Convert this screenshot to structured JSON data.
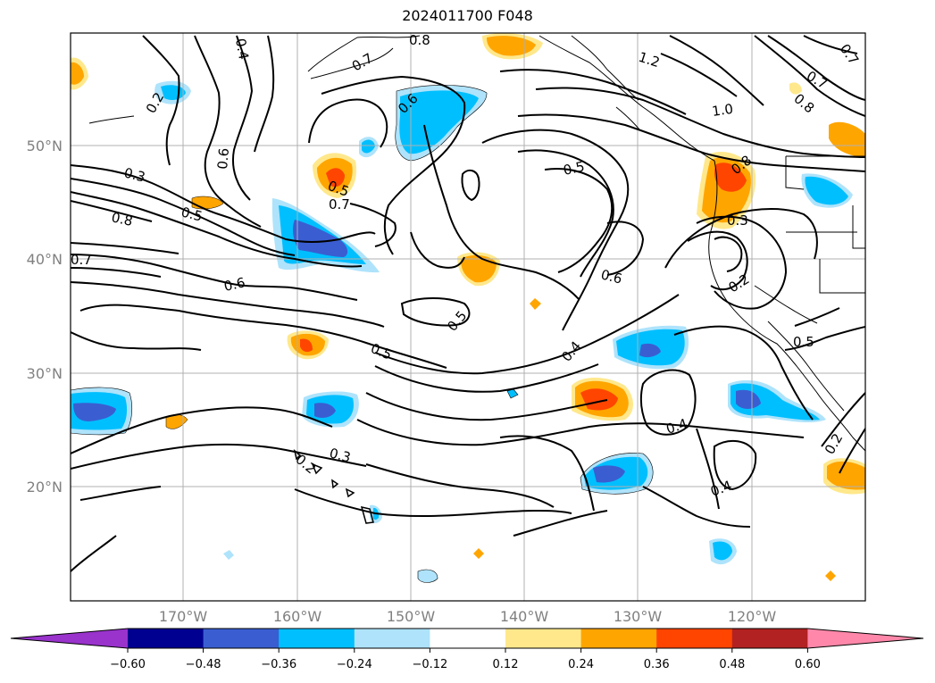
{
  "title": "2024011700 F048",
  "lon_labels": [
    "170°W",
    "160°W",
    "150°W",
    "140°W",
    "130°W",
    "120°W"
  ],
  "lat_labels": [
    "50°N",
    "40°N",
    "30°N",
    "20°N"
  ],
  "colorbar": {
    "ticks": [
      "−0.60",
      "−0.48",
      "−0.36",
      "−0.24",
      "−0.12",
      "0.12",
      "0.24",
      "0.36",
      "0.48",
      "0.60"
    ],
    "colors": [
      "#9933cc",
      "#000090",
      "#3a5ed1",
      "#00bfff",
      "#aee3fb",
      "#ffffff",
      "#ffe88c",
      "#ffa500",
      "#ff4500",
      "#b22222",
      "#ff88aa"
    ]
  },
  "contour_labels": [
    "0.8",
    "1.2",
    "0.7",
    "0.4",
    "0.2",
    "0.6",
    "0.6",
    "0.3",
    "0.5",
    "0.7",
    "0.5",
    "0.8",
    "0.7",
    "0.6",
    "0.5",
    "0.5",
    "0.5",
    "0.6",
    "0.4",
    "0.8",
    "0.3",
    "0.2",
    "0.5",
    "0.4",
    "0.4",
    "0.3",
    "0.2",
    "1.0",
    "0.7",
    "0.8",
    "0.7",
    "0.2"
  ]
}
